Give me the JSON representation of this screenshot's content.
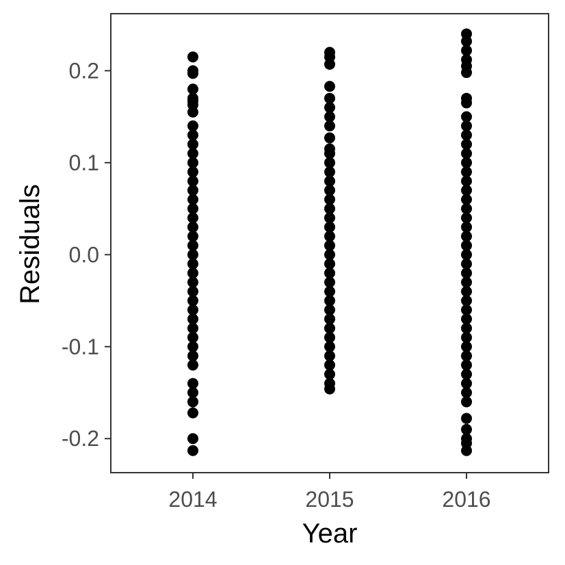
{
  "chart_data": {
    "type": "scatter",
    "title": "",
    "xlabel": "Year",
    "ylabel": "Residuals",
    "x_ticks": [
      "2014",
      "2015",
      "2016"
    ],
    "y_ticks": [
      "-0.2",
      "-0.1",
      "0.0",
      "0.1",
      "0.2"
    ],
    "y_tick_values": [
      -0.2,
      -0.1,
      0.0,
      0.1,
      0.2
    ],
    "xlim": [
      2013.4,
      2016.6
    ],
    "ylim": [
      -0.237,
      0.262
    ],
    "grid": false,
    "legend": "none",
    "point_color": "#000000",
    "series": [
      {
        "x": 2014,
        "values": [
          0.215,
          0.2,
          0.197,
          0.18,
          0.17,
          0.167,
          0.163,
          0.155,
          0.14,
          0.13,
          0.12,
          0.11,
          0.1,
          0.09,
          0.08,
          0.07,
          0.06,
          0.05,
          0.04,
          0.03,
          0.02,
          0.01,
          0.0,
          -0.01,
          -0.02,
          -0.03,
          -0.04,
          -0.05,
          -0.06,
          -0.07,
          -0.08,
          -0.09,
          -0.1,
          -0.11,
          -0.12,
          -0.14,
          -0.15,
          -0.16,
          -0.172,
          -0.2,
          -0.213
        ]
      },
      {
        "x": 2015,
        "values": [
          0.22,
          0.215,
          0.207,
          0.183,
          0.17,
          0.16,
          0.15,
          0.14,
          0.127,
          0.115,
          0.11,
          0.1,
          0.09,
          0.08,
          0.07,
          0.06,
          0.05,
          0.04,
          0.03,
          0.02,
          0.01,
          0.0,
          -0.01,
          -0.02,
          -0.03,
          -0.04,
          -0.05,
          -0.06,
          -0.07,
          -0.08,
          -0.09,
          -0.1,
          -0.11,
          -0.12,
          -0.13,
          -0.14,
          -0.146
        ]
      },
      {
        "x": 2016,
        "values": [
          0.24,
          0.232,
          0.222,
          0.212,
          0.205,
          0.198,
          0.17,
          0.165,
          0.15,
          0.14,
          0.13,
          0.12,
          0.11,
          0.1,
          0.09,
          0.08,
          0.07,
          0.06,
          0.05,
          0.04,
          0.03,
          0.02,
          0.01,
          0.0,
          -0.01,
          -0.02,
          -0.03,
          -0.04,
          -0.05,
          -0.06,
          -0.07,
          -0.08,
          -0.09,
          -0.1,
          -0.11,
          -0.12,
          -0.13,
          -0.14,
          -0.15,
          -0.16,
          -0.178,
          -0.19,
          -0.2,
          -0.205,
          -0.213
        ]
      }
    ]
  }
}
